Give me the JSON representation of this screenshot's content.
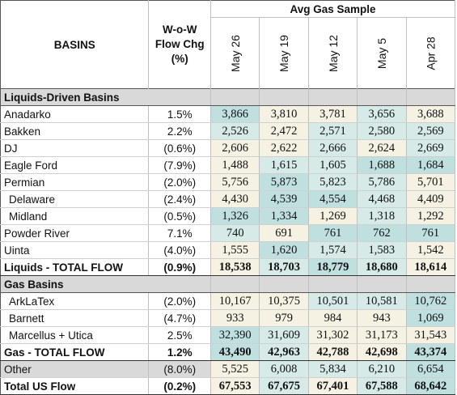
{
  "header": {
    "basins": "BASINS",
    "chg_line1": "W-o-W",
    "chg_line2": "Flow Chg",
    "chg_line3": "(%)",
    "avg_title": "Avg Gas Sample",
    "dates": [
      "May 26",
      "May 19",
      "May 12",
      "May 5",
      "Apr 28"
    ]
  },
  "sections": {
    "liquids": "Liquids-Driven Basins",
    "gas": "Gas Basins"
  },
  "liquids_rows": [
    {
      "name": "Anadarko",
      "chg": "1.5%",
      "vals": [
        "3,866",
        "3,810",
        "3,781",
        "3,656",
        "3,688"
      ],
      "colors": [
        "#bfe0df",
        "#f5f2e4",
        "#f5f2e4",
        "#d6ebe8",
        "#f5f2e4"
      ]
    },
    {
      "name": "Bakken",
      "chg": "2.2%",
      "vals": [
        "2,526",
        "2,472",
        "2,571",
        "2,580",
        "2,569"
      ],
      "colors": [
        "#d6ebe8",
        "#f5f2e4",
        "#d6ebe8",
        "#d6ebe8",
        "#d6ebe8"
      ]
    },
    {
      "name": "DJ",
      "chg": "(0.6%)",
      "vals": [
        "2,606",
        "2,622",
        "2,666",
        "2,624",
        "2,669"
      ],
      "colors": [
        "#f5f2e4",
        "#f5f2e4",
        "#d6ebe8",
        "#f5f2e4",
        "#d6ebe8"
      ]
    },
    {
      "name": "Eagle Ford",
      "chg": "(7.9%)",
      "vals": [
        "1,488",
        "1,615",
        "1,605",
        "1,688",
        "1,684"
      ],
      "colors": [
        "#f5f2e4",
        "#d6ebe8",
        "#d6ebe8",
        "#bfe0df",
        "#bfe0df"
      ]
    },
    {
      "name": "Permian",
      "chg": "(2.0%)",
      "vals": [
        "5,756",
        "5,873",
        "5,823",
        "5,786",
        "5,701"
      ],
      "colors": [
        "#f5f2e4",
        "#bfe0df",
        "#d6ebe8",
        "#d6ebe8",
        "#f5f2e4"
      ]
    },
    {
      "name": "Delaware",
      "chg": "(2.4%)",
      "vals": [
        "4,430",
        "4,539",
        "4,554",
        "4,468",
        "4,409"
      ],
      "colors": [
        "#f5f2e4",
        "#bfe0df",
        "#bfe0df",
        "#d6ebe8",
        "#f5f2e4"
      ],
      "indent": true
    },
    {
      "name": "Midland",
      "chg": "(0.5%)",
      "vals": [
        "1,326",
        "1,334",
        "1,269",
        "1,318",
        "1,292"
      ],
      "colors": [
        "#bfe0df",
        "#bfe0df",
        "#f5f2e4",
        "#d6ebe8",
        "#f5f2e4"
      ],
      "indent": true
    },
    {
      "name": "Powder River",
      "chg": "7.1%",
      "vals": [
        "740",
        "691",
        "761",
        "762",
        "761"
      ],
      "colors": [
        "#d6ebe8",
        "#f5f2e4",
        "#bfe0df",
        "#bfe0df",
        "#bfe0df"
      ]
    },
    {
      "name": "Uinta",
      "chg": "(4.0%)",
      "vals": [
        "1,555",
        "1,620",
        "1,574",
        "1,583",
        "1,542"
      ],
      "colors": [
        "#f5f2e4",
        "#bfe0df",
        "#d6ebe8",
        "#d6ebe8",
        "#f5f2e4"
      ]
    }
  ],
  "liquids_total": {
    "name": "Liquids - TOTAL FLOW",
    "chg": "(0.9%)",
    "vals": [
      "18,538",
      "18,703",
      "18,779",
      "18,680",
      "18,614"
    ],
    "colors": [
      "#f5f2e4",
      "#d6ebe8",
      "#bfe0df",
      "#d6ebe8",
      "#f5f2e4"
    ]
  },
  "gas_rows": [
    {
      "name": "ArkLaTex",
      "chg": "(2.0%)",
      "vals": [
        "10,167",
        "10,375",
        "10,501",
        "10,581",
        "10,762"
      ],
      "colors": [
        "#f5f2e4",
        "#f5f2e4",
        "#d6ebe8",
        "#d6ebe8",
        "#bfe0df"
      ],
      "indent": true
    },
    {
      "name": "Barnett",
      "chg": "(4.7%)",
      "vals": [
        "933",
        "979",
        "984",
        "943",
        "1,069"
      ],
      "colors": [
        "#f5f2e4",
        "#f5f2e4",
        "#f5f2e4",
        "#f5f2e4",
        "#bfe0df"
      ],
      "indent": true
    },
    {
      "name": "Marcellus + Utica",
      "chg": "2.5%",
      "vals": [
        "32,390",
        "31,609",
        "31,302",
        "31,173",
        "31,543"
      ],
      "colors": [
        "#bfe0df",
        "#d6ebe8",
        "#f5f2e4",
        "#f5f2e4",
        "#f5f2e4"
      ],
      "indent": true
    }
  ],
  "gas_total": {
    "name": "Gas - TOTAL FLOW",
    "chg": "1.2%",
    "vals": [
      "43,490",
      "42,963",
      "42,788",
      "42,698",
      "43,374"
    ],
    "colors": [
      "#bfe0df",
      "#d6ebe8",
      "#f5f2e4",
      "#f5f2e4",
      "#bfe0df"
    ]
  },
  "other": {
    "name": "Other",
    "chg": "(8.0%)",
    "vals": [
      "5,525",
      "6,008",
      "5,834",
      "6,210",
      "6,654"
    ],
    "colors": [
      "#f5f2e4",
      "#d6ebe8",
      "#d6ebe8",
      "#d6ebe8",
      "#bfe0df"
    ]
  },
  "us_total": {
    "name": "Total US Flow",
    "chg": "(0.2%)",
    "vals": [
      "67,553",
      "67,675",
      "67,401",
      "67,588",
      "68,642"
    ],
    "colors": [
      "#f5f2e4",
      "#d6ebe8",
      "#f5f2e4",
      "#d6ebe8",
      "#bfe0df"
    ]
  }
}
